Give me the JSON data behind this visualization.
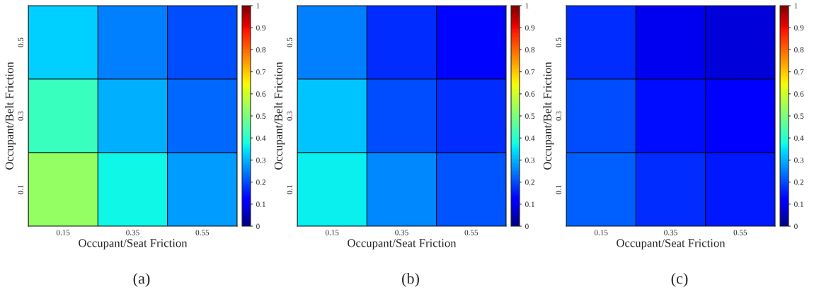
{
  "chart_data": [
    {
      "type": "heatmap",
      "xlabel": "Occupant/Seat Friction",
      "ylabel": "Occupant/Belt Friction",
      "categories": [
        "0.15",
        "0.35",
        "0.55"
      ],
      "y_categories": [
        "0.5",
        "0.3",
        "0.1"
      ],
      "cells": [
        [
          0.33,
          0.25,
          0.2
        ],
        [
          0.42,
          0.3,
          0.23
        ],
        [
          0.53,
          0.37,
          0.28
        ]
      ],
      "clim": [
        0,
        1
      ],
      "cticks": [
        0,
        0.1,
        0.2,
        0.3,
        0.4,
        0.5,
        0.6,
        0.7,
        0.8,
        0.9,
        1
      ],
      "annotations": [
        "(a)"
      ]
    },
    {
      "type": "heatmap",
      "xlabel": "Occupant/Seat Friction",
      "ylabel": "Occupant/Belt Friction",
      "categories": [
        "0.15",
        "0.35",
        "0.55"
      ],
      "y_categories": [
        "0.5",
        "0.3",
        "0.1"
      ],
      "cells": [
        [
          0.25,
          0.17,
          0.13
        ],
        [
          0.32,
          0.2,
          0.17
        ],
        [
          0.36,
          0.26,
          0.21
        ]
      ],
      "clim": [
        0,
        1
      ],
      "cticks": [
        0,
        0.1,
        0.2,
        0.3,
        0.4,
        0.5,
        0.6,
        0.7,
        0.8,
        0.9,
        1
      ],
      "annotations": [
        "(b)"
      ]
    },
    {
      "type": "heatmap",
      "xlabel": "Occupant/Seat Friction",
      "ylabel": "Occupant/Belt Friction",
      "categories": [
        "0.15",
        "0.35",
        "0.55"
      ],
      "y_categories": [
        "0.5",
        "0.3",
        "0.1"
      ],
      "cells": [
        [
          0.17,
          0.1,
          0.08
        ],
        [
          0.2,
          0.14,
          0.11
        ],
        [
          0.22,
          0.17,
          0.15
        ]
      ],
      "clim": [
        0,
        1
      ],
      "cticks": [
        0,
        0.1,
        0.2,
        0.3,
        0.4,
        0.5,
        0.6,
        0.7,
        0.8,
        0.9,
        1
      ],
      "annotations": [
        "(c)"
      ]
    }
  ]
}
